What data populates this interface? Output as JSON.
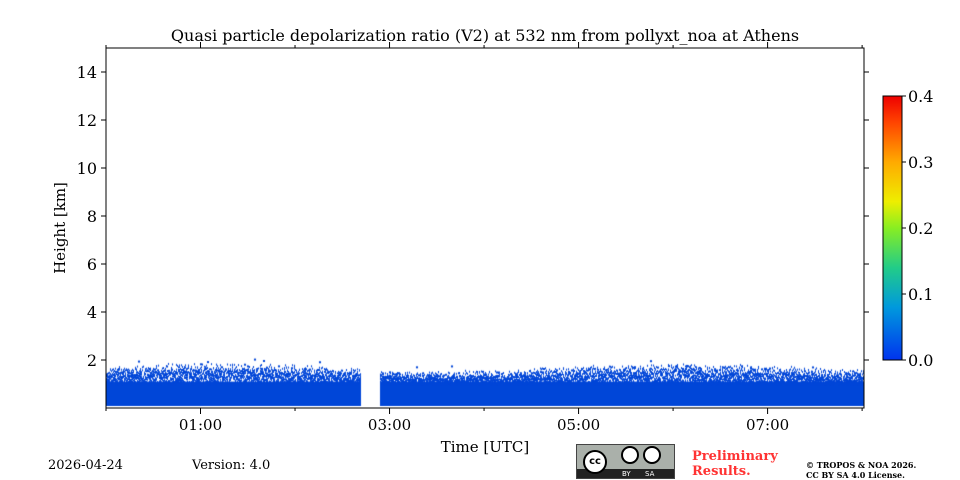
{
  "chart_data": {
    "type": "heatmap",
    "title": "Quasi particle depolarization ratio (V2) at 532 nm from pollyxt_noa at Athens",
    "xlabel": "Time [UTC]",
    "ylabel": "Height [km]",
    "xlim_hours": [
      0,
      8.02
    ],
    "ylim": [
      0,
      15
    ],
    "xticks": [
      {
        "h": 1,
        "label": "01:00"
      },
      {
        "h": 3,
        "label": "03:00"
      },
      {
        "h": 5,
        "label": "05:00"
      },
      {
        "h": 7,
        "label": "07:00"
      }
    ],
    "yticks": [
      2,
      4,
      6,
      8,
      10,
      12,
      14
    ],
    "colorbar": {
      "range": [
        0,
        0.4
      ],
      "ticks": [
        "0.0",
        "0.1",
        "0.2",
        "0.3",
        "0.4"
      ],
      "colormap": "jet"
    },
    "data_gaps_hours": [
      [
        2.69,
        2.89
      ]
    ],
    "signal": {
      "value_approx": 0.03,
      "color": "#0046d8",
      "top_height_km_approx": 1.6,
      "max_speckle_km": 2.2
    }
  },
  "footer": {
    "date": "2026-04-24",
    "version": "Version: 4.0",
    "preliminary": [
      "Preliminary",
      "Results."
    ],
    "copyright": [
      "© TROPOS & NOA 2026.",
      "CC BY SA 4.0 License."
    ],
    "cc_badge": [
      "cc",
      "BY",
      "SA"
    ]
  }
}
